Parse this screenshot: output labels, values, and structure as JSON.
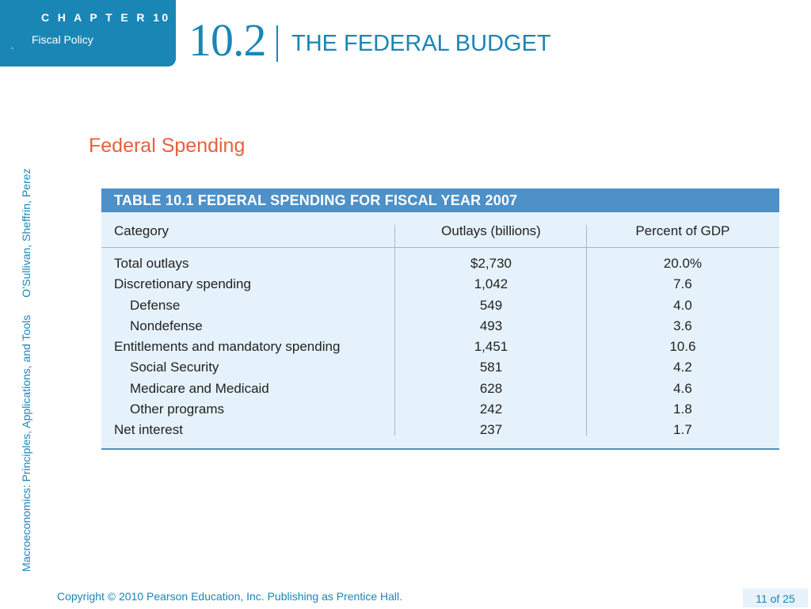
{
  "header": {
    "chapter_label": "C H A P T E R   10",
    "chapter_subtitle": "Fiscal Policy",
    "section_number": "10.2",
    "section_title": "THE FEDERAL BUDGET"
  },
  "side_text": {
    "book": "Macroeconomics: Principles, Applications, and Tools",
    "authors": "O’Sullivan, Sheffrin, Perez"
  },
  "subtitle": "Federal Spending",
  "table": {
    "title": "TABLE 10.1  FEDERAL SPENDING FOR FISCAL YEAR 2007",
    "columns": [
      "Category",
      "Outlays (billions)",
      "Percent of GDP"
    ],
    "rows": [
      {
        "category": "Total outlays",
        "outlays": "$2,730",
        "percent": "20.0%",
        "indent": false
      },
      {
        "category": "Discretionary spending",
        "outlays": "1,042",
        "percent": "7.6",
        "indent": false
      },
      {
        "category": "Defense",
        "outlays": "549",
        "percent": "4.0",
        "indent": true
      },
      {
        "category": "Nondefense",
        "outlays": "493",
        "percent": "3.6",
        "indent": true
      },
      {
        "category": "Entitlements and mandatory spending",
        "outlays": "1,451",
        "percent": "10.6",
        "indent": false
      },
      {
        "category": "Social Security",
        "outlays": "581",
        "percent": "4.2",
        "indent": true
      },
      {
        "category": "Medicare and Medicaid",
        "outlays": "628",
        "percent": "4.6",
        "indent": true
      },
      {
        "category": "Other programs",
        "outlays": "242",
        "percent": "1.8",
        "indent": true
      },
      {
        "category": "Net interest",
        "outlays": "237",
        "percent": "1.7",
        "indent": false
      }
    ]
  },
  "footer": {
    "copyright": "Copyright © 2010  Pearson Education, Inc. Publishing as Prentice Hall.",
    "page": "11 of 25"
  },
  "colors": {
    "brand_blue": "#1a86b5",
    "table_header": "#4e90c8",
    "table_bg": "#e6f2fb",
    "subtitle": "#e8603c"
  }
}
